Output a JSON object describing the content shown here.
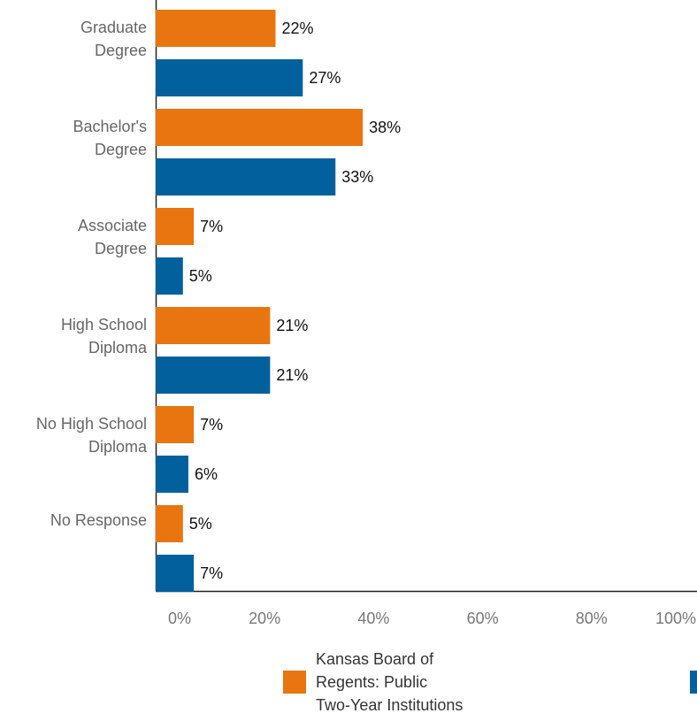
{
  "chart_data": {
    "type": "bar",
    "orientation": "horizontal",
    "categories": [
      "Graduate Degree",
      "Bachelor's Degree",
      "Associate Degree",
      "High School Diploma",
      "No High School Diploma",
      "No Response"
    ],
    "series": [
      {
        "name": "Kansas Board of Regents: Public Two-Year Institutions",
        "color": "#e8750f",
        "values": [
          22,
          38,
          7,
          21,
          7,
          5
        ],
        "value_labels": [
          "22%",
          "38%",
          "7%",
          "21%",
          "7%",
          "5%"
        ]
      },
      {
        "color": "#02619c",
        "values": [
          27,
          33,
          5,
          21,
          6,
          7
        ],
        "value_labels": [
          "27%",
          "33%",
          "5%",
          "21%",
          "6%",
          "7%"
        ]
      }
    ],
    "xlim": [
      0,
      100
    ],
    "xticks": [
      {
        "value": 0,
        "label": "0%"
      },
      {
        "value": 20,
        "label": "20%"
      },
      {
        "value": 40,
        "label": "40%"
      },
      {
        "value": 60,
        "label": "60%"
      },
      {
        "value": 80,
        "label": "80%"
      },
      {
        "value": 100,
        "label": "100%"
      }
    ],
    "legend": "bottom"
  }
}
